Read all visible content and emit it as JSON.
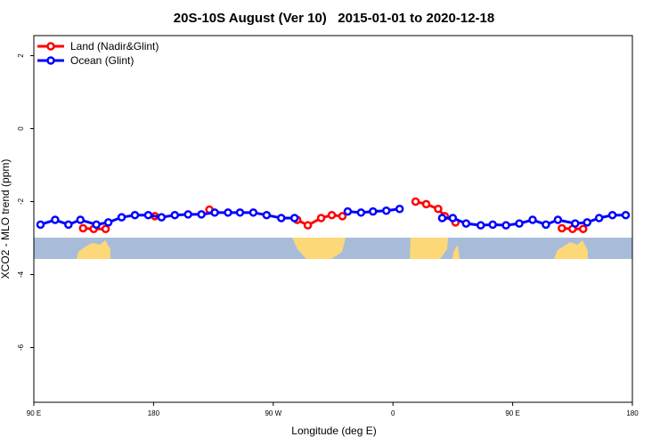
{
  "chart_data": {
    "type": "line",
    "title": "20S-10S August (Ver 10)   2015-01-01 to 2020-12-18",
    "xlabel": "Longitude (deg E)",
    "ylabel": "XCO2 - MLO trend (ppm)",
    "xlim": [
      90,
      540
    ],
    "ylim": [
      -7.5,
      2.55
    ],
    "xticks": [
      {
        "value": 90,
        "label": "90 E"
      },
      180,
      {
        "value": 270,
        "label": "90 W"
      },
      {
        "value": 360,
        "label": "0"
      },
      {
        "value": 450,
        "label": "90 E"
      },
      {
        "value": 540,
        "label": "180"
      }
    ],
    "yticks": [
      2,
      0,
      -2,
      -4,
      -6
    ],
    "legend": "top-left",
    "series": [
      {
        "name": "Land (Nadir&Glint)",
        "color": "#ff0000",
        "x": [
          127,
          135,
          144,
          160,
          181,
          200,
          222,
          280,
          288,
          296,
          306,
          314,
          322,
          345,
          377,
          385,
          394,
          399,
          407,
          520,
          487,
          495,
          503
        ],
        "values": [
          -2.73,
          -2.75,
          -2.75,
          null,
          -2.4,
          null,
          -2.22,
          null,
          -2.5,
          -2.65,
          -2.45,
          -2.37,
          -2.4,
          null,
          -2.0,
          -2.07,
          -2.2,
          -2.4,
          -2.57,
          null,
          -2.73,
          -2.75,
          -2.75
        ]
      },
      {
        "name": "Ocean (Glint)",
        "color": "#0000ff",
        "x": [
          95,
          106,
          116,
          125,
          137,
          146,
          156,
          166,
          176,
          186,
          196,
          206,
          216,
          226,
          236,
          245,
          255,
          265,
          276,
          286,
          305,
          326,
          336,
          345,
          355,
          365,
          380,
          397,
          405,
          415,
          426,
          435,
          445,
          455,
          465,
          475,
          484,
          497,
          506,
          515,
          525,
          535
        ],
        "values": [
          -2.63,
          -2.5,
          -2.63,
          -2.5,
          -2.63,
          -2.57,
          -2.43,
          -2.37,
          -2.37,
          -2.43,
          -2.37,
          -2.35,
          -2.35,
          -2.3,
          -2.3,
          -2.3,
          -2.3,
          -2.37,
          -2.45,
          -2.45,
          null,
          -2.27,
          -2.3,
          -2.27,
          -2.25,
          -2.2,
          null,
          -2.45,
          -2.45,
          -2.6,
          -2.65,
          -2.63,
          -2.65,
          -2.6,
          -2.5,
          -2.63,
          -2.5,
          -2.6,
          -2.57,
          -2.45,
          -2.37,
          -2.37
        ]
      }
    ]
  }
}
